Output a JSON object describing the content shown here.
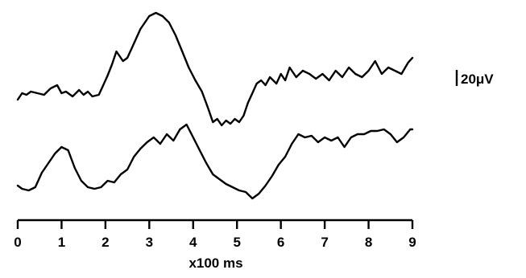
{
  "chart_data": {
    "type": "line",
    "xlabel": "x100 ms",
    "x_ticks": [
      "0",
      "1",
      "2",
      "3",
      "4",
      "5",
      "6",
      "7",
      "8",
      "9"
    ],
    "xlim": [
      0,
      9
    ],
    "scale_bar_label": "20μV",
    "colors": {
      "trace": "#000000",
      "axis": "#000000"
    },
    "series": [
      {
        "x": [
          0,
          0.1,
          0.2,
          0.3,
          0.45,
          0.6,
          0.75,
          0.9,
          1.0,
          1.1,
          1.25,
          1.4,
          1.5,
          1.6,
          1.7,
          1.85,
          1.95,
          2.05,
          2.15,
          2.25,
          2.4,
          2.5,
          2.6,
          2.7,
          2.8,
          2.9,
          3.0,
          3.15,
          3.3,
          3.45,
          3.6,
          3.75,
          3.9,
          4.05,
          4.2,
          4.35,
          4.45,
          4.55,
          4.65,
          4.75,
          4.85,
          4.95,
          5.05,
          5.15,
          5.25,
          5.35,
          5.45,
          5.55,
          5.65,
          5.75,
          5.9,
          6.0,
          6.1,
          6.2,
          6.35,
          6.5,
          6.65,
          6.8,
          6.95,
          7.1,
          7.25,
          7.4,
          7.55,
          7.7,
          7.85,
          8.0,
          8.15,
          8.3,
          8.45,
          8.6,
          8.75,
          8.9,
          9.0
        ],
        "y": [
          -2,
          2,
          1,
          3,
          2,
          1,
          5,
          7,
          2,
          3,
          0,
          4,
          1,
          3,
          0,
          1,
          7,
          13,
          20,
          28,
          22,
          24,
          30,
          36,
          42,
          46,
          50,
          52,
          50,
          46,
          38,
          28,
          18,
          10,
          3,
          -8,
          -16,
          -14,
          -18,
          -15,
          -17,
          -14,
          -16,
          -12,
          -4,
          2,
          8,
          10,
          7,
          12,
          8,
          14,
          10,
          18,
          12,
          16,
          14,
          11,
          14,
          10,
          16,
          12,
          18,
          14,
          12,
          16,
          22,
          14,
          18,
          16,
          14,
          21,
          24
        ]
      },
      {
        "x": [
          0,
          0.1,
          0.25,
          0.4,
          0.55,
          0.7,
          0.85,
          1.0,
          1.15,
          1.3,
          1.45,
          1.6,
          1.75,
          1.9,
          2.05,
          2.2,
          2.35,
          2.5,
          2.65,
          2.8,
          2.95,
          3.1,
          3.25,
          3.4,
          3.55,
          3.7,
          3.85,
          4.0,
          4.15,
          4.3,
          4.45,
          4.6,
          4.75,
          4.9,
          5.05,
          5.2,
          5.35,
          5.5,
          5.65,
          5.8,
          5.95,
          6.1,
          6.25,
          6.4,
          6.55,
          6.7,
          6.85,
          7.0,
          7.15,
          7.3,
          7.45,
          7.6,
          7.75,
          7.9,
          8.05,
          8.2,
          8.35,
          8.5,
          8.65,
          8.8,
          8.95,
          9.0
        ],
        "y": [
          -10,
          -12,
          -13,
          -11,
          -2,
          4,
          10,
          14,
          12,
          1,
          -7,
          -11,
          -12,
          -11,
          -7,
          -8,
          -3,
          0,
          8,
          13,
          17,
          20,
          16,
          22,
          18,
          25,
          28,
          20,
          12,
          4,
          -3,
          -6,
          -9,
          -11,
          -13,
          -14,
          -18,
          -15,
          -10,
          -4,
          3,
          8,
          16,
          22,
          20,
          21,
          17,
          20,
          18,
          20,
          14,
          20,
          22,
          22,
          24,
          24,
          25,
          22,
          17,
          20,
          25,
          25
        ]
      }
    ]
  }
}
